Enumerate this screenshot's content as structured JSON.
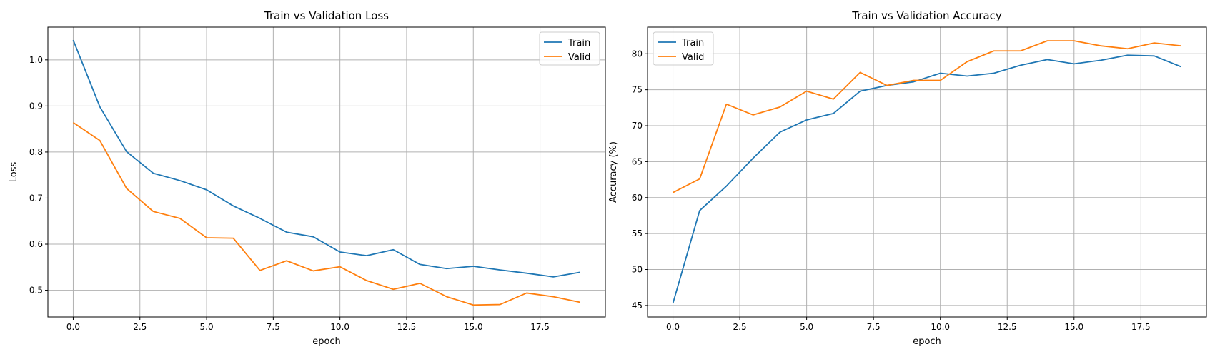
{
  "chart_data": [
    {
      "type": "line",
      "title": "Train vs Validation Loss",
      "xlabel": "epoch",
      "ylabel": "Loss",
      "xlim": [
        -0.95,
        19.95
      ],
      "ylim": [
        0.442,
        1.071
      ],
      "xticks": [
        0.0,
        2.5,
        5.0,
        7.5,
        10.0,
        12.5,
        15.0,
        17.5
      ],
      "xtick_labels": [
        "0.0",
        "2.5",
        "5.0",
        "7.5",
        "10.0",
        "12.5",
        "15.0",
        "17.5"
      ],
      "yticks": [
        0.5,
        0.6,
        0.7,
        0.8,
        0.9,
        1.0
      ],
      "ytick_labels": [
        "0.5",
        "0.6",
        "0.7",
        "0.8",
        "0.9",
        "1.0"
      ],
      "grid": true,
      "legend_position": "top-right",
      "x": [
        0,
        1,
        2,
        3,
        4,
        5,
        6,
        7,
        8,
        9,
        10,
        11,
        12,
        13,
        14,
        15,
        16,
        17,
        18,
        19
      ],
      "series": [
        {
          "name": "Train",
          "color": "#1f77b4",
          "values": [
            1.043,
            0.898,
            0.801,
            0.754,
            0.738,
            0.718,
            0.683,
            0.656,
            0.626,
            0.616,
            0.583,
            0.575,
            0.588,
            0.556,
            0.547,
            0.552,
            0.544,
            0.537,
            0.529,
            0.539
          ]
        },
        {
          "name": "Valid",
          "color": "#ff7f0e",
          "values": [
            0.864,
            0.825,
            0.721,
            0.671,
            0.656,
            0.614,
            0.613,
            0.543,
            0.564,
            0.542,
            0.551,
            0.521,
            0.502,
            0.515,
            0.486,
            0.468,
            0.469,
            0.494,
            0.486,
            0.474
          ]
        }
      ]
    },
    {
      "type": "line",
      "title": "Train vs Validation Accuracy",
      "xlabel": "epoch",
      "ylabel": "Accuracy (%)",
      "xlim": [
        -0.95,
        19.95
      ],
      "ylim": [
        43.4,
        83.7
      ],
      "xticks": [
        0.0,
        2.5,
        5.0,
        7.5,
        10.0,
        12.5,
        15.0,
        17.5
      ],
      "xtick_labels": [
        "0.0",
        "2.5",
        "5.0",
        "7.5",
        "10.0",
        "12.5",
        "15.0",
        "17.5"
      ],
      "yticks": [
        45,
        50,
        55,
        60,
        65,
        70,
        75,
        80
      ],
      "ytick_labels": [
        "45",
        "50",
        "55",
        "60",
        "65",
        "70",
        "75",
        "80"
      ],
      "grid": true,
      "legend_position": "top-left",
      "x": [
        0,
        1,
        2,
        3,
        4,
        5,
        6,
        7,
        8,
        9,
        10,
        11,
        12,
        13,
        14,
        15,
        16,
        17,
        18,
        19
      ],
      "series": [
        {
          "name": "Train",
          "color": "#1f77b4",
          "values": [
            45.3,
            58.2,
            61.6,
            65.5,
            69.1,
            70.8,
            71.7,
            74.8,
            75.6,
            76.1,
            77.3,
            76.9,
            77.3,
            78.4,
            79.2,
            78.6,
            79.1,
            79.8,
            79.7,
            78.2
          ]
        },
        {
          "name": "Valid",
          "color": "#ff7f0e",
          "values": [
            60.7,
            62.6,
            73.0,
            71.5,
            72.6,
            74.8,
            73.7,
            77.4,
            75.6,
            76.3,
            76.3,
            78.9,
            80.4,
            80.4,
            81.8,
            81.8,
            81.1,
            80.7,
            81.5,
            81.1
          ]
        }
      ]
    }
  ]
}
